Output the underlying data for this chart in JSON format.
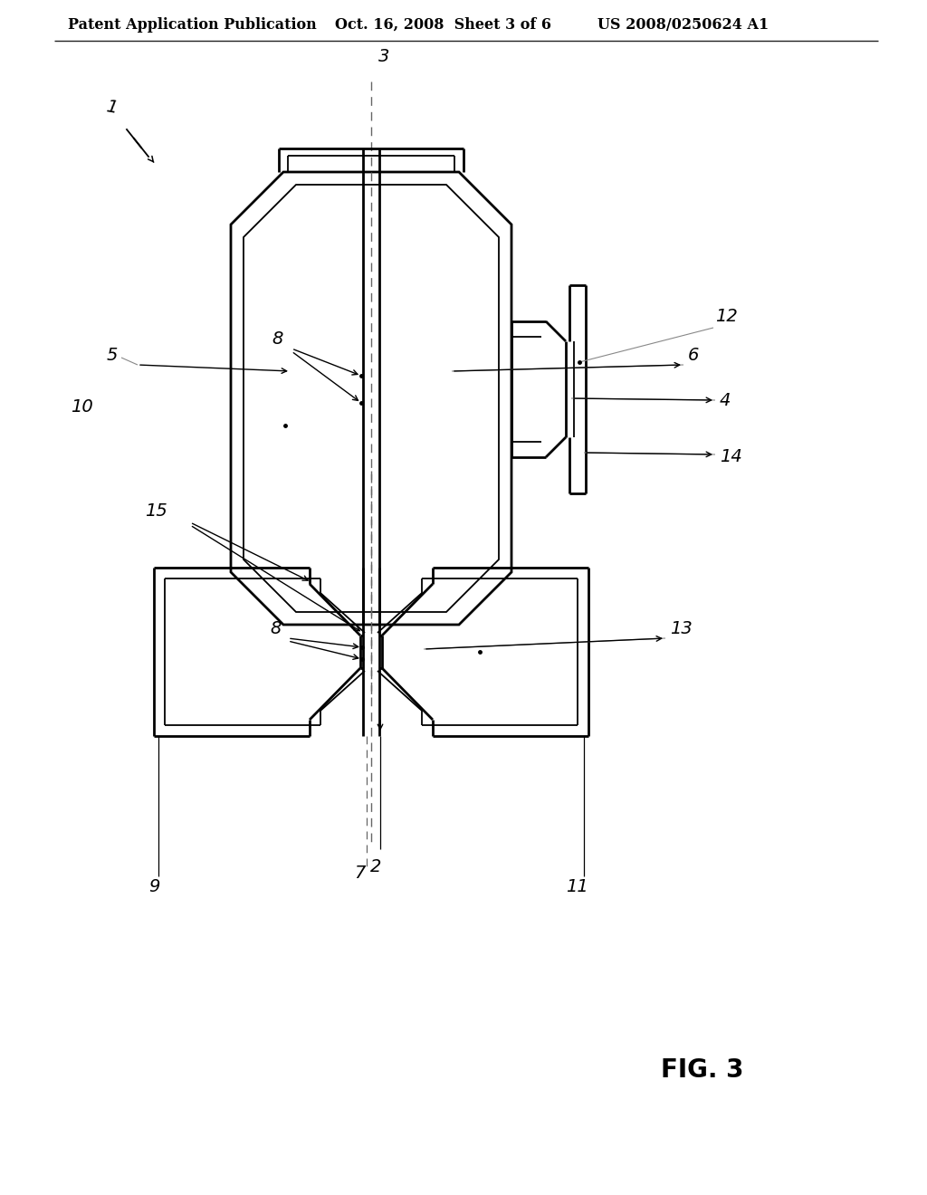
{
  "header_left": "Patent Application Publication",
  "header_mid": "Oct. 16, 2008  Sheet 3 of 6",
  "header_right": "US 2008/0250624 A1",
  "fig_label": "FIG. 3",
  "bg_color": "#ffffff",
  "line_color": "#000000",
  "header_fontsize": 11.5,
  "label_fontsize": 14,
  "fig_caption_fontsize": 20
}
